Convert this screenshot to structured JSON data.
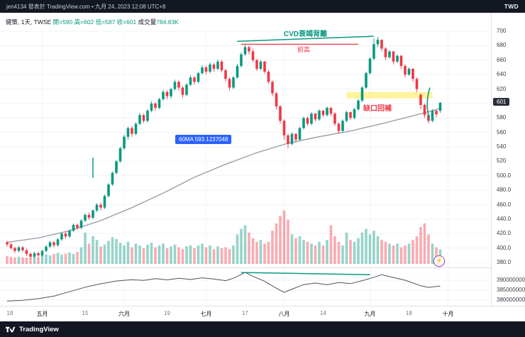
{
  "header": {
    "publisher": "jen4134 發表於 TradingView.com • 九月 24, 2023 12:08 UTC+8",
    "currency": "TWD"
  },
  "legend": {
    "title": "健策, 1天, TWSE",
    "ohlc": "開=590 高=602 低=587 收=601",
    "volume_label": "成交量",
    "volume_value": "784.83K"
  },
  "annotations": {
    "cvd_divergence": "CVD衰竭背離",
    "prev_high": "前高",
    "gap_fill": "缺口回補",
    "ma_pill": "60MA 593.1237048",
    "boost_icon": "⚡"
  },
  "footer": {
    "brand": "TradingView"
  },
  "colors": {
    "up": "#089981",
    "down": "#f23645",
    "ma": "#9598a1",
    "accent_blue": "#2962ff",
    "annotation_green": "#089981",
    "annotation_red": "#f23645",
    "band_yellow": "#ffe94d",
    "teal_mark": "#26a69a",
    "cvd_line": "#50535e",
    "grid": "#f0f3fa",
    "separator": "#dde1e8",
    "bar_bg": "#131722",
    "last_price_bg": "#2a2e39"
  },
  "axes": {
    "price_grid": [
      700,
      680,
      660,
      640,
      620,
      600,
      580,
      560,
      540,
      520,
      500,
      480,
      460,
      440,
      420,
      400,
      380
    ],
    "price_labels": [
      {
        "p": 700,
        "t": "700"
      },
      {
        "p": 680,
        "t": "680"
      },
      {
        "p": 660,
        "t": "660"
      },
      {
        "p": 640,
        "t": "640"
      },
      {
        "p": 620,
        "t": "620"
      },
      {
        "p": 580,
        "t": "580"
      },
      {
        "p": 560,
        "t": "560"
      },
      {
        "p": 540,
        "t": "540"
      },
      {
        "p": 520,
        "t": "520"
      },
      {
        "p": 500,
        "t": "500.0"
      },
      {
        "p": 480,
        "t": "480.0"
      },
      {
        "p": 460,
        "t": "460.0"
      },
      {
        "p": 440,
        "t": "440.0"
      },
      {
        "p": 420,
        "t": "420.0"
      },
      {
        "p": 400,
        "t": "400.0"
      },
      {
        "p": 380,
        "t": "380.0"
      }
    ],
    "last_price": {
      "p": 601,
      "t": "601"
    },
    "time_labels": [
      {
        "i": 0.7,
        "t": "18",
        "major": false,
        "grid": false
      },
      {
        "i": 9,
        "t": "五月",
        "major": true,
        "grid": true
      },
      {
        "i": 20,
        "t": "15",
        "major": false,
        "grid": false
      },
      {
        "i": 30,
        "t": "六月",
        "major": true,
        "grid": true
      },
      {
        "i": 41,
        "t": "19",
        "major": false,
        "grid": false
      },
      {
        "i": 51,
        "t": "七月",
        "major": true,
        "grid": true
      },
      {
        "i": 61,
        "t": "17",
        "major": false,
        "grid": false
      },
      {
        "i": 71,
        "t": "八月",
        "major": true,
        "grid": true
      },
      {
        "i": 81,
        "t": "14",
        "major": false,
        "grid": false
      },
      {
        "i": 93,
        "t": "九月",
        "major": true,
        "grid": true
      },
      {
        "i": 103,
        "t": "18",
        "major": false,
        "grid": false
      },
      {
        "i": 113,
        "t": "十月",
        "major": true,
        "grid": true
      }
    ],
    "cvd_labels": [
      {
        "v": 390000000,
        "t": "390000000"
      },
      {
        "v": 385000000,
        "t": "385000000"
      },
      {
        "v": 380000000,
        "t": "380000000"
      }
    ]
  },
  "chart_data": {
    "type": "candlestick",
    "title": "健策 1天 TWSE",
    "ylim": [
      380,
      700
    ],
    "last_ohlc": {
      "open": 590,
      "high": 602,
      "low": 587,
      "close": 601,
      "volume_k": 784.83
    },
    "candles": [
      [
        408,
        410,
        402,
        405
      ],
      [
        405,
        407,
        398,
        400
      ],
      [
        400,
        402,
        393,
        396
      ],
      [
        396,
        403,
        394,
        401
      ],
      [
        401,
        403,
        395,
        397
      ],
      [
        397,
        399,
        389,
        392
      ],
      [
        392,
        394,
        385,
        388
      ],
      [
        388,
        395,
        386,
        393
      ],
      [
        393,
        395,
        387,
        390
      ],
      [
        390,
        398,
        388,
        396
      ],
      [
        396,
        404,
        394,
        402
      ],
      [
        402,
        410,
        400,
        408
      ],
      [
        408,
        410,
        401,
        404
      ],
      [
        404,
        414,
        402,
        412
      ],
      [
        412,
        422,
        410,
        420
      ],
      [
        420,
        423,
        413,
        416
      ],
      [
        416,
        426,
        414,
        424
      ],
      [
        424,
        434,
        422,
        432
      ],
      [
        432,
        434,
        425,
        428
      ],
      [
        428,
        440,
        426,
        438
      ],
      [
        438,
        448,
        436,
        446
      ],
      [
        446,
        449,
        439,
        442
      ],
      [
        442,
        454,
        440,
        452
      ],
      [
        452,
        462,
        450,
        460
      ],
      [
        460,
        463,
        452,
        456
      ],
      [
        456,
        474,
        454,
        472
      ],
      [
        472,
        490,
        470,
        488
      ],
      [
        488,
        506,
        486,
        504
      ],
      [
        504,
        522,
        502,
        520
      ],
      [
        520,
        540,
        518,
        538
      ],
      [
        538,
        557,
        536,
        554
      ],
      [
        554,
        568,
        550,
        566
      ],
      [
        566,
        569,
        554,
        558
      ],
      [
        558,
        574,
        556,
        572
      ],
      [
        572,
        587,
        570,
        584
      ],
      [
        584,
        586,
        573,
        576
      ],
      [
        576,
        592,
        574,
        590
      ],
      [
        590,
        603,
        588,
        600
      ],
      [
        600,
        602,
        590,
        594
      ],
      [
        594,
        608,
        592,
        606
      ],
      [
        606,
        619,
        604,
        616
      ],
      [
        616,
        618,
        606,
        610
      ],
      [
        610,
        622,
        607,
        620
      ],
      [
        620,
        633,
        618,
        630
      ],
      [
        630,
        632,
        618,
        622
      ],
      [
        622,
        624,
        608,
        612
      ],
      [
        612,
        628,
        610,
        626
      ],
      [
        626,
        639,
        624,
        636
      ],
      [
        636,
        638,
        626,
        630
      ],
      [
        630,
        644,
        628,
        642
      ],
      [
        642,
        653,
        640,
        650
      ],
      [
        650,
        652,
        640,
        644
      ],
      [
        644,
        657,
        642,
        654
      ],
      [
        654,
        656,
        644,
        648
      ],
      [
        648,
        661,
        646,
        658
      ],
      [
        658,
        660,
        643,
        646
      ],
      [
        646,
        648,
        630,
        634
      ],
      [
        634,
        636,
        618,
        622
      ],
      [
        622,
        638,
        620,
        636
      ],
      [
        636,
        655,
        634,
        652
      ],
      [
        652,
        671,
        650,
        668
      ],
      [
        668,
        682,
        666,
        678
      ],
      [
        678,
        680,
        668,
        672
      ],
      [
        672,
        676,
        657,
        660
      ],
      [
        660,
        662,
        645,
        648
      ],
      [
        648,
        660,
        646,
        658
      ],
      [
        658,
        659,
        641,
        644
      ],
      [
        644,
        646,
        627,
        630
      ],
      [
        630,
        632,
        610,
        614
      ],
      [
        614,
        616,
        592,
        596
      ],
      [
        596,
        598,
        572,
        576
      ],
      [
        576,
        578,
        550,
        556
      ],
      [
        556,
        558,
        538,
        544
      ],
      [
        544,
        560,
        542,
        558
      ],
      [
        558,
        559,
        546,
        550
      ],
      [
        550,
        568,
        548,
        566
      ],
      [
        566,
        582,
        564,
        580
      ],
      [
        580,
        582,
        569,
        572
      ],
      [
        572,
        588,
        570,
        586
      ],
      [
        586,
        587,
        575,
        578
      ],
      [
        578,
        592,
        576,
        590
      ],
      [
        590,
        591,
        581,
        584
      ],
      [
        584,
        596,
        582,
        594
      ],
      [
        594,
        595,
        583,
        586
      ],
      [
        586,
        588,
        569,
        572
      ],
      [
        572,
        574,
        558,
        562
      ],
      [
        562,
        578,
        560,
        576
      ],
      [
        576,
        590,
        574,
        588
      ],
      [
        588,
        589,
        577,
        580
      ],
      [
        580,
        594,
        578,
        592
      ],
      [
        592,
        606,
        590,
        604
      ],
      [
        604,
        624,
        602,
        622
      ],
      [
        622,
        644,
        620,
        642
      ],
      [
        642,
        664,
        640,
        662
      ],
      [
        662,
        690,
        660,
        682
      ],
      [
        682,
        692,
        678,
        688
      ],
      [
        688,
        689,
        672,
        676
      ],
      [
        676,
        678,
        660,
        664
      ],
      [
        664,
        674,
        662,
        672
      ],
      [
        672,
        673,
        654,
        658
      ],
      [
        658,
        668,
        656,
        666
      ],
      [
        666,
        667,
        648,
        652
      ],
      [
        652,
        654,
        636,
        640
      ],
      [
        640,
        650,
        638,
        648
      ],
      [
        648,
        649,
        630,
        634
      ],
      [
        634,
        636,
        616,
        620
      ],
      [
        612,
        614,
        592,
        598
      ],
      [
        598,
        600,
        580,
        584
      ],
      [
        584,
        586,
        572,
        576
      ],
      [
        576,
        592,
        574,
        590
      ],
      [
        590,
        591,
        581,
        585
      ],
      [
        590,
        602,
        587,
        601
      ]
    ],
    "volumes_k": [
      420,
      380,
      350,
      390,
      360,
      340,
      330,
      370,
      350,
      480,
      520,
      460,
      540,
      600,
      500,
      560,
      620,
      540,
      650,
      900,
      1700,
      1100,
      1500,
      1300,
      950,
      1050,
      1250,
      1450,
      1350,
      1150,
      1000,
      1200,
      900,
      1100,
      1000,
      850,
      1050,
      1150,
      900,
      1000,
      1100,
      850,
      950,
      1050,
      900,
      800,
      950,
      1000,
      850,
      1000,
      1100,
      900,
      1000,
      800,
      950,
      850,
      900,
      800,
      1000,
      1600,
      1900,
      2100,
      1700,
      1400,
      1200,
      1300,
      1100,
      1200,
      1800,
      2200,
      2600,
      2900,
      2400,
      1600,
      1400,
      1500,
      1300,
      1200,
      1100,
      1000,
      1200,
      1000,
      1300,
      2100,
      1500,
      1200,
      1000,
      1700,
      1300,
      1200,
      1400,
      1700,
      1900,
      1600,
      1800,
      1500,
      1300,
      1200,
      1100,
      1000,
      1100,
      900,
      1000,
      1100,
      1300,
      1500,
      2000,
      2200,
      1600,
      1100,
      900,
      784.83
    ],
    "ma60": [
      [
        0,
        408
      ],
      [
        8,
        414
      ],
      [
        16,
        424
      ],
      [
        24,
        438
      ],
      [
        32,
        456
      ],
      [
        40,
        476
      ],
      [
        48,
        498
      ],
      [
        56,
        516
      ],
      [
        64,
        532
      ],
      [
        72,
        545
      ],
      [
        80,
        554
      ],
      [
        88,
        562
      ],
      [
        96,
        572
      ],
      [
        104,
        583
      ],
      [
        111,
        593.12
      ]
    ],
    "cvd": {
      "ylim": [
        378000000,
        394500000
      ],
      "points": [
        [
          0,
          379500000
        ],
        [
          4,
          379900000
        ],
        [
          8,
          380700000
        ],
        [
          12,
          382000000
        ],
        [
          16,
          384200000
        ],
        [
          20,
          386500000
        ],
        [
          24,
          388200000
        ],
        [
          28,
          389600000
        ],
        [
          32,
          390300000
        ],
        [
          35,
          389900000
        ],
        [
          38,
          390800000
        ],
        [
          41,
          390200000
        ],
        [
          44,
          391000000
        ],
        [
          47,
          390400000
        ],
        [
          50,
          391200000
        ],
        [
          53,
          390600000
        ],
        [
          56,
          389800000
        ],
        [
          58,
          391000000
        ],
        [
          61,
          393900000
        ],
        [
          63,
          392000000
        ],
        [
          66,
          389500000
        ],
        [
          69,
          386000000
        ],
        [
          71,
          383900000
        ],
        [
          73,
          385500000
        ],
        [
          76,
          387800000
        ],
        [
          79,
          388600000
        ],
        [
          82,
          387700000
        ],
        [
          85,
          388900000
        ],
        [
          88,
          388300000
        ],
        [
          91,
          389800000
        ],
        [
          94,
          391500000
        ],
        [
          96,
          392800000
        ],
        [
          99,
          391400000
        ],
        [
          102,
          390000000
        ],
        [
          104,
          388600000
        ],
        [
          106,
          387200000
        ],
        [
          108,
          386400000
        ],
        [
          110,
          386900000
        ],
        [
          111,
          387100000
        ]
      ]
    },
    "drawings": {
      "price_trendline_green": {
        "from": [
          59,
          686
        ],
        "to": [
          94,
          693
        ]
      },
      "prev_high_line_red": {
        "from": [
          60,
          682
        ],
        "to": [
          90,
          682
        ]
      },
      "gap_band_yellow": {
        "from_i": 87,
        "to_i": 109,
        "price_top": 616,
        "price_bottom": 607
      },
      "teal_mark": {
        "i": 22,
        "price_top": 525,
        "price_bottom": 497
      },
      "gap_fill_mark_green": {
        "i": 108,
        "price_top": 622,
        "price_bottom": 579
      },
      "cvd_trendline_green": {
        "from": [
          60,
          393900000
        ],
        "to": [
          93,
          392800000
        ]
      }
    }
  }
}
